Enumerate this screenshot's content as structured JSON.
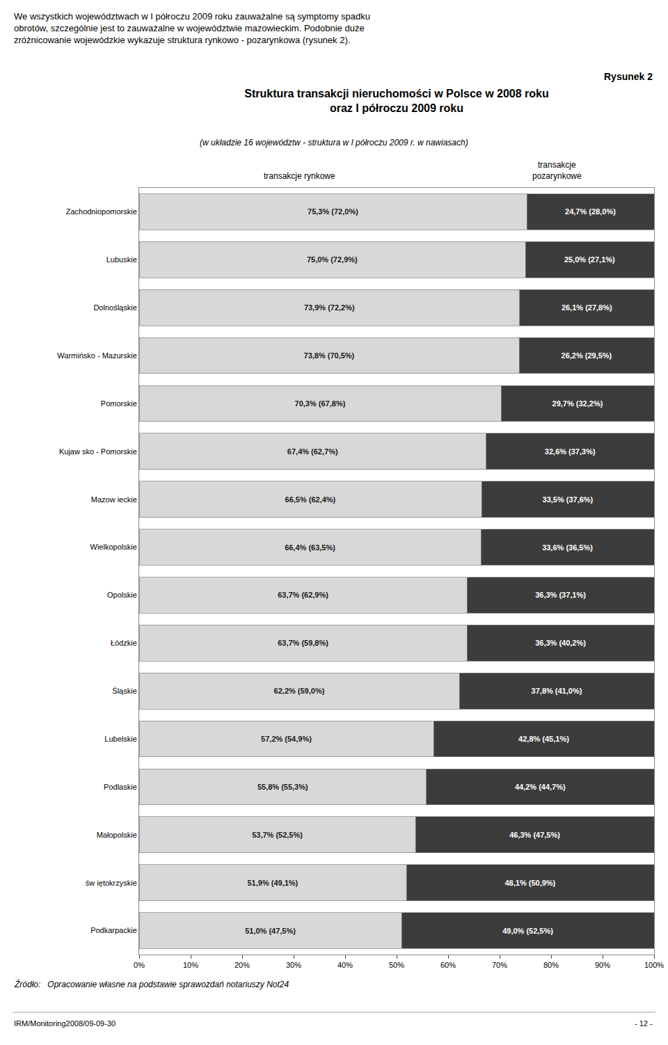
{
  "chart_data": {
    "type": "bar",
    "orientation": "horizontal",
    "stacked": true,
    "data_labels": true,
    "grid": false,
    "title": "Struktura transakcji nieruchomości w Polsce w 2008 roku\noraz I półroczu 2009 roku",
    "subtitle": "(w układzie 16 województw - struktura w I półroczu 2009 r. w nawiasach)",
    "annotations": [
      "We wszystkich województwach w I półroczu 2009 roku zauważalne są symptomy spadku\nobrotów, szczególnie jest to zauważalne w województwie mazowieckim. Podobnie duże\nzróżnicowanie wojewódzkie wykazuje struktura rynkowo - pozarynkowa (rysunek 2).",
      "Rysunek 2",
      "Źródło:   Opracowanie własne na podstawie sprawozdań notariuszy Not24",
      "IRM/Monitoring2008/09-09-30",
      "- 12 -"
    ],
    "categories": [
      "Zachodniopomorskie",
      "Lubuskie",
      "Dolnośląskie",
      "Warmińsko - Mazurskie",
      "Pomorskie",
      "Kujaw sko - Pomorskie",
      "Mazow ieckie",
      "Wielkopolskie",
      "Opolskie",
      "Łódzkie",
      "Śląskie",
      "Lubelskie",
      "Podlaskie",
      "Małopolskie",
      "św iętokrzyskie",
      "Podkarpackie"
    ],
    "series": [
      {
        "name": "transakcje rynkowe",
        "color": "#d8d8d8",
        "values": [
          75.3,
          75.0,
          73.9,
          73.8,
          70.3,
          67.4,
          66.5,
          66.4,
          63.7,
          63.7,
          62.2,
          57.2,
          55.8,
          53.7,
          51.9,
          51.0
        ],
        "value_labels": [
          "75,3% (72,0%)",
          "75,0% (72,9%)",
          "73,9% (72,2%)",
          "73,8% (70,5%)",
          "70,3% (67,8%)",
          "67,4% (62,7%)",
          "66,5% (62,4%)",
          "66,4% (63,5%)",
          "63,7% (62,9%)",
          "63,7% (59,8%)",
          "62,2% (59,0%)",
          "57,2% (54,9%)",
          "55,8% (55,3%)",
          "53,7% (52,5%)",
          "51,9% (49,1%)",
          "51,0% (47,5%)"
        ]
      },
      {
        "name": "transakcje\npozarynkowe",
        "color": "#3c3c3c",
        "values": [
          24.7,
          25.0,
          26.1,
          26.2,
          29.7,
          32.6,
          33.5,
          33.6,
          36.3,
          36.3,
          37.8,
          42.8,
          44.2,
          46.3,
          48.1,
          49.0
        ],
        "value_labels": [
          "24,7% (28,0%)",
          "25,0% (27,1%)",
          "26,1% (27,8%)",
          "26,2% (29,5%)",
          "29,7% (32,2%)",
          "32,6% (37,3%)",
          "33,5% (37,6%)",
          "33,6% (36,5%)",
          "36,3% (37,1%)",
          "36,3% (40,2%)",
          "37,8% (41,0%)",
          "42,8% (45,1%)",
          "44,2% (44,7%)",
          "46,3% (47,5%)",
          "48,1% (50,9%)",
          "49,0% (52,5%)"
        ]
      }
    ],
    "xlim": [
      0,
      100
    ],
    "xticks": [
      {
        "value": 0,
        "label": "0%"
      },
      {
        "value": 10,
        "label": "10%"
      },
      {
        "value": 20,
        "label": "20%"
      },
      {
        "value": 30,
        "label": "30%"
      },
      {
        "value": 40,
        "label": "40%"
      },
      {
        "value": 50,
        "label": "50%"
      },
      {
        "value": 60,
        "label": "60%"
      },
      {
        "value": 70,
        "label": "70%"
      },
      {
        "value": 80,
        "label": "80%"
      },
      {
        "value": 90,
        "label": "90%"
      },
      {
        "value": 100,
        "label": "100%"
      }
    ]
  }
}
